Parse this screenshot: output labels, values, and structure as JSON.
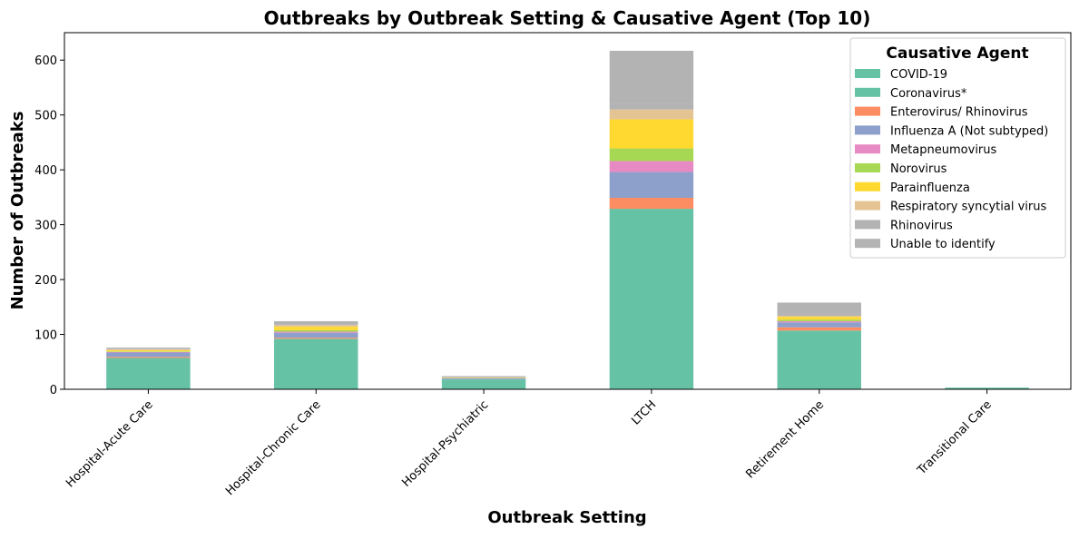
{
  "chart_data": {
    "type": "bar",
    "stacked": true,
    "title": "Outbreaks by Outbreak Setting & Causative Agent (Top 10)",
    "xlabel": "Outbreak Setting",
    "ylabel": "Number of Outbreaks",
    "ylim": [
      0,
      650
    ],
    "yticks": [
      0,
      100,
      200,
      300,
      400,
      500,
      600
    ],
    "legend_title": "Causative Agent",
    "legend_position": "top-right",
    "grid": false,
    "categories": [
      "Hospital-Acute Care",
      "Hospital-Chronic Care",
      "Hospital-Psychiatric",
      "LTCH",
      "Retirement Home",
      "Transitional Care"
    ],
    "series": [
      {
        "name": "COVID-19",
        "color": "#66c2a5",
        "values": [
          57,
          92,
          18,
          329,
          107,
          3
        ]
      },
      {
        "name": "Coronavirus*",
        "color": "#66c2a5",
        "values": [
          0,
          0,
          0,
          0,
          0,
          0
        ]
      },
      {
        "name": "Enterovirus/ Rhinovirus",
        "color": "#fc8d62",
        "values": [
          2,
          2,
          0,
          20,
          6,
          0
        ]
      },
      {
        "name": "Influenza A (Not subtyped)",
        "color": "#8da0cb",
        "values": [
          8,
          9,
          2,
          47,
          9,
          0
        ]
      },
      {
        "name": "Metapneumovirus",
        "color": "#e78ac3",
        "values": [
          1,
          2,
          0,
          20,
          2,
          0
        ]
      },
      {
        "name": "Norovirus",
        "color": "#a6d854",
        "values": [
          1,
          3,
          0,
          23,
          3,
          0
        ]
      },
      {
        "name": "Parainfluenza",
        "color": "#ffd92f",
        "values": [
          2,
          6,
          1,
          53,
          5,
          0
        ]
      },
      {
        "name": "Respiratory syncytial virus",
        "color": "#e5c494",
        "values": [
          2,
          3,
          0,
          18,
          2,
          0
        ]
      },
      {
        "name": "Rhinovirus",
        "color": "#b3b3b3",
        "values": [
          1,
          2,
          1,
          10,
          4,
          0
        ]
      },
      {
        "name": "Unable to identify",
        "color": "#b3b3b3",
        "values": [
          2,
          5,
          2,
          97,
          20,
          0
        ]
      }
    ]
  }
}
